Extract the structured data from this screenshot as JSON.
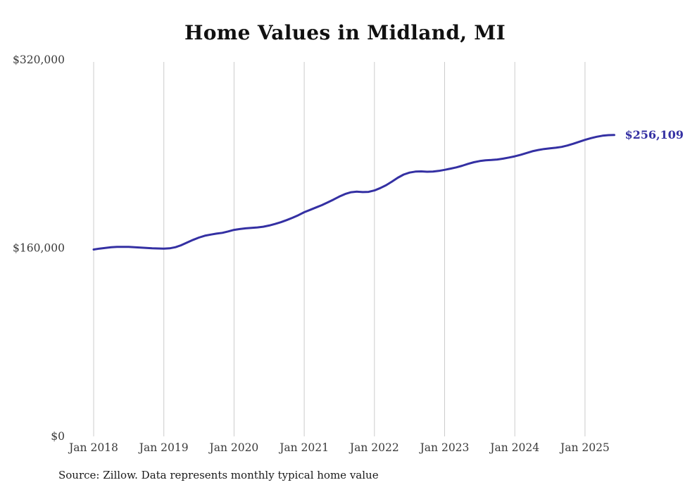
{
  "title": "Home Values in Midland, MI",
  "footer": {
    "source": "Source: Zillow. Data represents monthly typical home value"
  },
  "chart_data": {
    "type": "line",
    "title": "Home Values in Midland, MI",
    "series_name": "Monthly typical home value",
    "x_start": "2018-01",
    "x_interval": "month",
    "x_end": "2025-06",
    "values": [
      158800,
      159600,
      160200,
      160700,
      161000,
      161100,
      161000,
      160800,
      160500,
      160200,
      159900,
      159700,
      159500,
      159800,
      160800,
      162500,
      164800,
      167000,
      169000,
      170500,
      171500,
      172300,
      173000,
      174200,
      175500,
      176200,
      176800,
      177200,
      177600,
      178200,
      179200,
      180500,
      182000,
      183800,
      185800,
      188000,
      190500,
      192500,
      194500,
      196500,
      198800,
      201200,
      203800,
      206000,
      207500,
      208000,
      207600,
      207800,
      209000,
      211000,
      213500,
      216500,
      219800,
      222500,
      224200,
      225000,
      225200,
      224900,
      225100,
      225600,
      226500,
      227500,
      228600,
      230000,
      231600,
      233000,
      234000,
      234600,
      234900,
      235300,
      236000,
      237000,
      238000,
      239300,
      240800,
      242300,
      243400,
      244200,
      244800,
      245300,
      246000,
      247200,
      248700,
      250400,
      252000,
      253400,
      254600,
      255500,
      256000,
      256109
    ],
    "end_label": "$256,109",
    "xticks": [
      "Jan 2018",
      "Jan 2019",
      "Jan 2020",
      "Jan 2021",
      "Jan 2022",
      "Jan 2023",
      "Jan 2024",
      "Jan 2025"
    ],
    "yticks": [
      {
        "value": 0,
        "label": "$0"
      },
      {
        "value": 160000,
        "label": "$160,000"
      },
      {
        "value": 320000,
        "label": "$320,000"
      }
    ],
    "ylim": [
      0,
      320000
    ],
    "grid": "vertical-only",
    "legend": "none",
    "line_color": "#3430a3",
    "grid_color": "#cccccc",
    "tick_label_color": "#3a3a3a"
  }
}
